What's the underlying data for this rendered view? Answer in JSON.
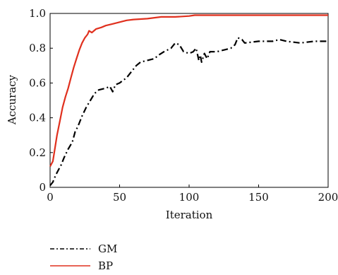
{
  "chart_data": {
    "type": "line",
    "title": "",
    "xlabel": "Iteration",
    "ylabel": "Accuracy",
    "xlim": [
      0,
      200
    ],
    "ylim": [
      0,
      1.0
    ],
    "xticks": [
      0,
      50,
      100,
      150,
      200
    ],
    "yticks": [
      0,
      0.2,
      0.4,
      0.6,
      0.8,
      1.0
    ],
    "ytick_labels": [
      "0",
      "0.2",
      "0.4",
      "0.6",
      "0.8",
      "1.0"
    ],
    "grid": false,
    "legend_placement": "bottom-left",
    "series": [
      {
        "name": "GM",
        "color": "#000000",
        "style": "dashdot",
        "points": [
          [
            0,
            0.01
          ],
          [
            2,
            0.03
          ],
          [
            4,
            0.07
          ],
          [
            6,
            0.1
          ],
          [
            8,
            0.13
          ],
          [
            10,
            0.17
          ],
          [
            13,
            0.22
          ],
          [
            16,
            0.26
          ],
          [
            18,
            0.32
          ],
          [
            20,
            0.35
          ],
          [
            23,
            0.41
          ],
          [
            26,
            0.46
          ],
          [
            29,
            0.5
          ],
          [
            32,
            0.54
          ],
          [
            35,
            0.56
          ],
          [
            40,
            0.57
          ],
          [
            43,
            0.58
          ],
          [
            45,
            0.55
          ],
          [
            47,
            0.59
          ],
          [
            50,
            0.6
          ],
          [
            55,
            0.63
          ],
          [
            58,
            0.66
          ],
          [
            60,
            0.68
          ],
          [
            62,
            0.7
          ],
          [
            65,
            0.72
          ],
          [
            70,
            0.73
          ],
          [
            75,
            0.74
          ],
          [
            78,
            0.76
          ],
          [
            82,
            0.78
          ],
          [
            87,
            0.8
          ],
          [
            90,
            0.83
          ],
          [
            93,
            0.82
          ],
          [
            96,
            0.78
          ],
          [
            100,
            0.77
          ],
          [
            103,
            0.78
          ],
          [
            105,
            0.8
          ],
          [
            107,
            0.73
          ],
          [
            108,
            0.76
          ],
          [
            109,
            0.72
          ],
          [
            111,
            0.77
          ],
          [
            113,
            0.74
          ],
          [
            115,
            0.78
          ],
          [
            120,
            0.78
          ],
          [
            125,
            0.79
          ],
          [
            130,
            0.8
          ],
          [
            133,
            0.82
          ],
          [
            135,
            0.86
          ],
          [
            138,
            0.85
          ],
          [
            140,
            0.83
          ],
          [
            150,
            0.84
          ],
          [
            160,
            0.84
          ],
          [
            165,
            0.85
          ],
          [
            170,
            0.84
          ],
          [
            180,
            0.83
          ],
          [
            190,
            0.84
          ],
          [
            200,
            0.84
          ]
        ]
      },
      {
        "name": "BP",
        "color": "#e0301e",
        "style": "solid",
        "points": [
          [
            0,
            0.12
          ],
          [
            2,
            0.15
          ],
          [
            3,
            0.2
          ],
          [
            5,
            0.3
          ],
          [
            7,
            0.38
          ],
          [
            9,
            0.46
          ],
          [
            11,
            0.52
          ],
          [
            13,
            0.57
          ],
          [
            15,
            0.63
          ],
          [
            17,
            0.69
          ],
          [
            19,
            0.74
          ],
          [
            21,
            0.79
          ],
          [
            23,
            0.83
          ],
          [
            25,
            0.86
          ],
          [
            27,
            0.88
          ],
          [
            28,
            0.9
          ],
          [
            30,
            0.89
          ],
          [
            33,
            0.91
          ],
          [
            37,
            0.92
          ],
          [
            40,
            0.93
          ],
          [
            45,
            0.94
          ],
          [
            50,
            0.95
          ],
          [
            55,
            0.96
          ],
          [
            60,
            0.965
          ],
          [
            70,
            0.97
          ],
          [
            80,
            0.98
          ],
          [
            90,
            0.98
          ],
          [
            100,
            0.985
          ],
          [
            104,
            0.99
          ],
          [
            110,
            0.99
          ],
          [
            130,
            0.99
          ],
          [
            150,
            0.99
          ],
          [
            170,
            0.99
          ],
          [
            200,
            0.99
          ]
        ]
      }
    ]
  }
}
